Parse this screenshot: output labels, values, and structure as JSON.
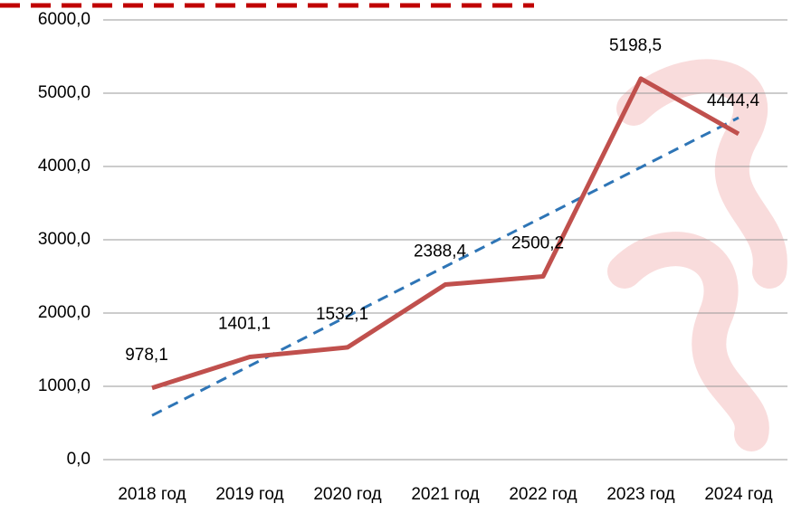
{
  "chart_data": {
    "type": "line",
    "categories": [
      "2018 год",
      "2019 год",
      "2020 год",
      "2021 год",
      "2022 год",
      "2023 год",
      "2024 год"
    ],
    "series": [
      {
        "color": "#c0504d",
        "values": [
          978.1,
          1401.1,
          1532.1,
          2388.4,
          2500.2,
          5198.5,
          4444.4
        ],
        "value_labels": [
          "978,1",
          "1401,1",
          "1532,1",
          "2388,4",
          "2500,2",
          "5198,5",
          "4444,4"
        ]
      }
    ],
    "trendline": "linear",
    "trendline_color": "#2e75b6",
    "ylim": [
      0,
      6000
    ],
    "yticks": [
      {
        "value": 0,
        "label": "0,0"
      },
      {
        "value": 1000,
        "label": "1000,0"
      },
      {
        "value": 2000,
        "label": "2000,0"
      },
      {
        "value": 3000,
        "label": "3000,0"
      },
      {
        "value": 4000,
        "label": "4000,0"
      },
      {
        "value": 5000,
        "label": "5000,0"
      },
      {
        "value": 6000,
        "label": "6000,0"
      }
    ],
    "grid": true
  }
}
